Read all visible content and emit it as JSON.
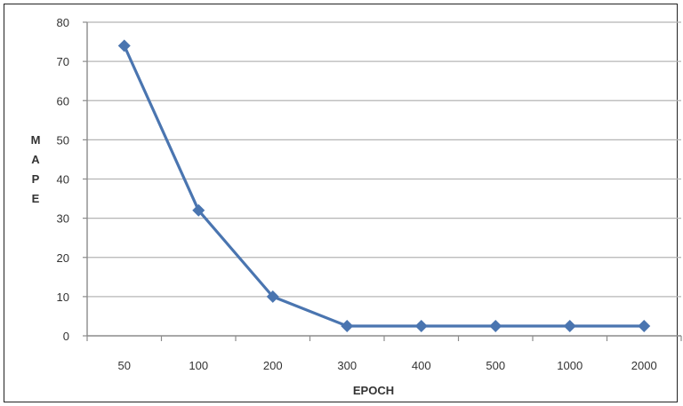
{
  "chart_data": {
    "type": "line",
    "categories": [
      "50",
      "100",
      "200",
      "300",
      "400",
      "500",
      "1000",
      "2000"
    ],
    "series": [
      {
        "values": [
          74,
          32,
          10,
          2.5,
          2.5,
          2.5,
          2.5,
          2.5
        ]
      }
    ],
    "xlabel": "EPOCH",
    "ylabel_letters": [
      "M",
      "A",
      "P",
      "E"
    ],
    "ylim": [
      0,
      80
    ],
    "yticks": [
      0,
      10,
      20,
      30,
      40,
      50,
      60,
      70,
      80
    ],
    "grid": true,
    "colors": {
      "series": "#4A75B0",
      "grid": "#B5B5B5",
      "axis": "#8C8C8C"
    }
  }
}
